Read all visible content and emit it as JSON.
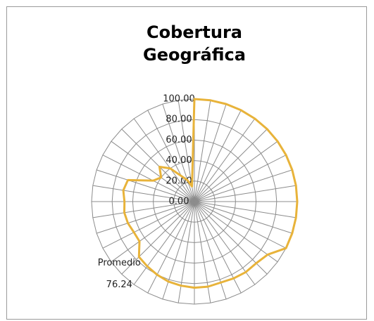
{
  "chart_data": {
    "type": "radar",
    "title": "Cobertura Geográfica",
    "categories": [
      null,
      null,
      null,
      null,
      null,
      null,
      null,
      null,
      null,
      null,
      null,
      null,
      null,
      null,
      null,
      null,
      null,
      null,
      null,
      null,
      null,
      null,
      null,
      null,
      null,
      "Promedio",
      null,
      null,
      null,
      null,
      null,
      null,
      null,
      null,
      null,
      null,
      null,
      null,
      null,
      null
    ],
    "values": [
      100,
      100,
      100,
      100,
      100,
      100,
      100,
      100,
      100,
      100,
      100,
      100,
      100,
      100,
      88,
      85,
      85,
      84,
      83,
      84,
      84,
      83,
      82,
      80,
      78,
      76.24,
      66,
      66,
      68,
      69,
      68,
      70,
      68,
      45,
      40,
      48,
      40,
      28,
      22,
      15
    ],
    "value_labels": [
      null,
      null,
      null,
      null,
      null,
      null,
      null,
      null,
      null,
      null,
      null,
      null,
      null,
      null,
      null,
      null,
      null,
      null,
      null,
      null,
      null,
      null,
      null,
      null,
      null,
      "76.24",
      null,
      null,
      null,
      null,
      null,
      null,
      null,
      null,
      null,
      null,
      null,
      null,
      null,
      null
    ],
    "color": "#e8b33a",
    "ylim": [
      0,
      100
    ],
    "yticks": [
      {
        "value": 0,
        "label": "0.00"
      },
      {
        "value": 20,
        "label": "20.00"
      },
      {
        "value": 40,
        "label": "40.00"
      },
      {
        "value": 60,
        "label": "60.00"
      },
      {
        "value": 80,
        "label": "80.00"
      },
      {
        "value": 100,
        "label": "100.00"
      }
    ],
    "grid": true
  }
}
